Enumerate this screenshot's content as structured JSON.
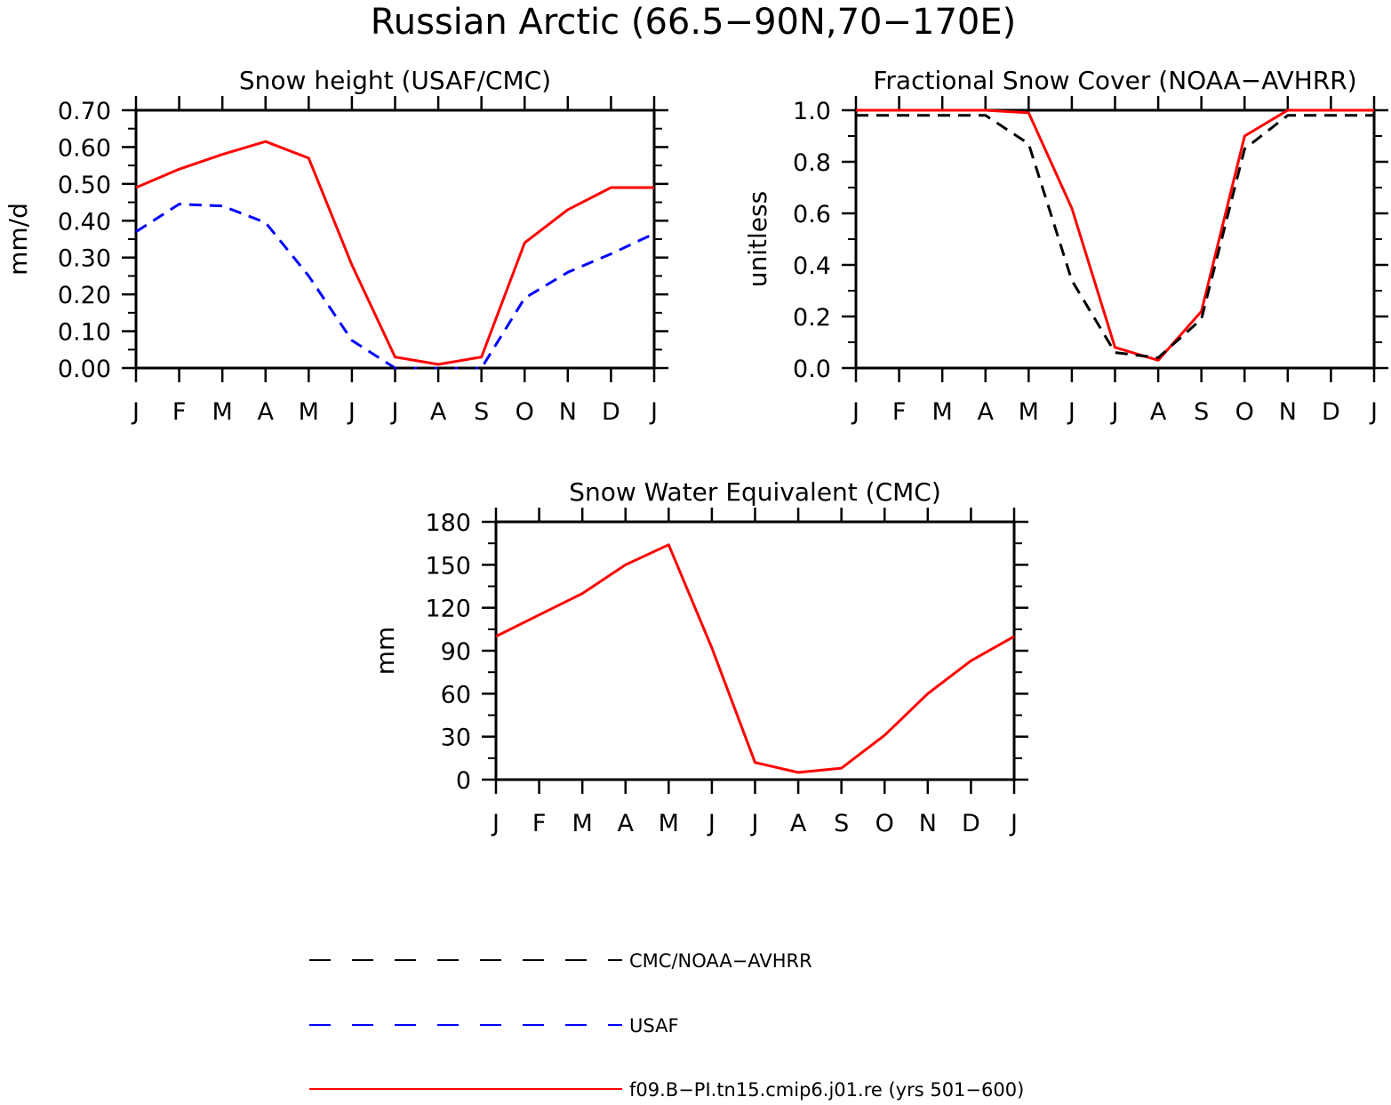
{
  "page": {
    "title": "Russian Arctic (66.5−90N,70−170E)"
  },
  "months": [
    "J",
    "F",
    "M",
    "A",
    "M",
    "J",
    "J",
    "A",
    "S",
    "O",
    "N",
    "D",
    "J"
  ],
  "colors": {
    "model": "#ff0000",
    "usaf": "#0000ff",
    "cmc": "#000000",
    "axis": "#000000"
  },
  "legend": [
    {
      "label": "CMC/NOAA−AVHRR",
      "color": "#000000",
      "dash": "dashed"
    },
    {
      "label": "USAF",
      "color": "#0000ff",
      "dash": "dashed"
    },
    {
      "label": "f09.B−PI.tn15.cmip6.j01.re (yrs 501−600)",
      "color": "#ff0000",
      "dash": "solid"
    }
  ],
  "chart_data": [
    {
      "type": "line",
      "title": "Snow height (USAF/CMC)",
      "ylabel": "mm/d",
      "xlabel": "",
      "ylim": [
        0,
        0.7
      ],
      "yticks": [
        "0.00",
        "0.10",
        "0.20",
        "0.30",
        "0.40",
        "0.50",
        "0.60",
        "0.70"
      ],
      "series": [
        {
          "role": "model",
          "style": "solid",
          "values": [
            0.49,
            0.54,
            0.58,
            0.615,
            0.57,
            0.28,
            0.03,
            0.01,
            0.03,
            0.34,
            0.43,
            0.49,
            0.49
          ]
        },
        {
          "role": "usaf",
          "style": "dashed",
          "values": [
            0.37,
            0.445,
            0.44,
            0.395,
            0.25,
            0.075,
            0.0,
            0.0,
            0.0,
            0.19,
            0.26,
            0.31,
            0.365
          ]
        },
        {
          "role": "cmc",
          "style": "dashed",
          "values": [
            0,
            0,
            0,
            0,
            0,
            0,
            0,
            0,
            0,
            0,
            0,
            0,
            0
          ]
        }
      ]
    },
    {
      "type": "line",
      "title": "Fractional Snow Cover (NOAA−AVHRR)",
      "ylabel": "unitless",
      "xlabel": "",
      "ylim": [
        0,
        1.0
      ],
      "yticks": [
        "0.0",
        "0.2",
        "0.4",
        "0.6",
        "0.8",
        "1.0"
      ],
      "series": [
        {
          "role": "model",
          "style": "solid",
          "values": [
            1.0,
            1.0,
            1.0,
            1.0,
            0.99,
            0.62,
            0.08,
            0.03,
            0.22,
            0.9,
            1.0,
            1.0,
            1.0
          ]
        },
        {
          "role": "cmc",
          "style": "dashed",
          "values": [
            0.98,
            0.98,
            0.98,
            0.98,
            0.87,
            0.34,
            0.06,
            0.04,
            0.19,
            0.85,
            0.98,
            0.98,
            0.98
          ]
        }
      ]
    },
    {
      "type": "line",
      "title": "Snow Water Equivalent (CMC)",
      "ylabel": "mm",
      "xlabel": "",
      "ylim": [
        0,
        180
      ],
      "yticks": [
        "0",
        "30",
        "60",
        "90",
        "120",
        "150",
        "180"
      ],
      "series": [
        {
          "role": "model",
          "style": "solid",
          "values": [
            100,
            115,
            130,
            150,
            164,
            92,
            12,
            5,
            8,
            31,
            60,
            83,
            100
          ]
        },
        {
          "role": "cmc",
          "style": "dashed",
          "values": [
            0,
            0,
            0,
            0,
            0,
            0,
            0,
            0,
            0,
            0,
            0,
            0,
            0
          ]
        }
      ]
    }
  ]
}
